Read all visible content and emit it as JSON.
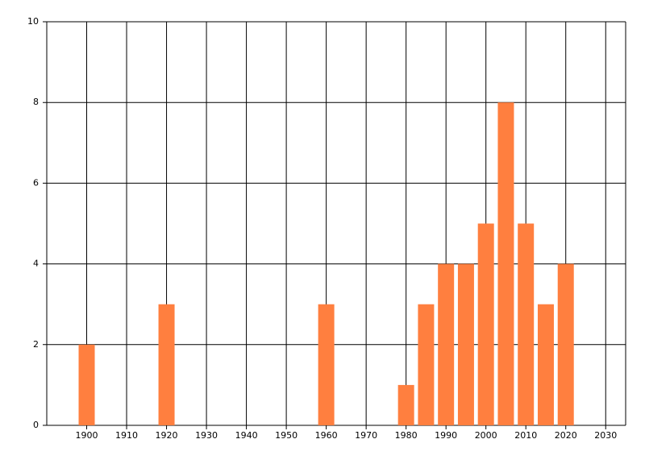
{
  "chart_data": {
    "type": "bar",
    "x": [
      1900,
      1920,
      1960,
      1980,
      1985,
      1990,
      1995,
      2000,
      2005,
      2010,
      2015,
      2020
    ],
    "values": [
      2,
      3,
      3,
      1,
      3,
      4,
      4,
      5,
      8,
      5,
      3,
      4
    ],
    "color": "#ff7f3f",
    "xlim": [
      1890,
      2035
    ],
    "xticks": [
      1900,
      1910,
      1920,
      1930,
      1940,
      1950,
      1960,
      1970,
      1980,
      1990,
      2000,
      2010,
      2020,
      2030
    ],
    "ylim": [
      0,
      10
    ],
    "yticks": [
      0,
      2,
      4,
      6,
      8,
      10
    ],
    "grid": true
  }
}
